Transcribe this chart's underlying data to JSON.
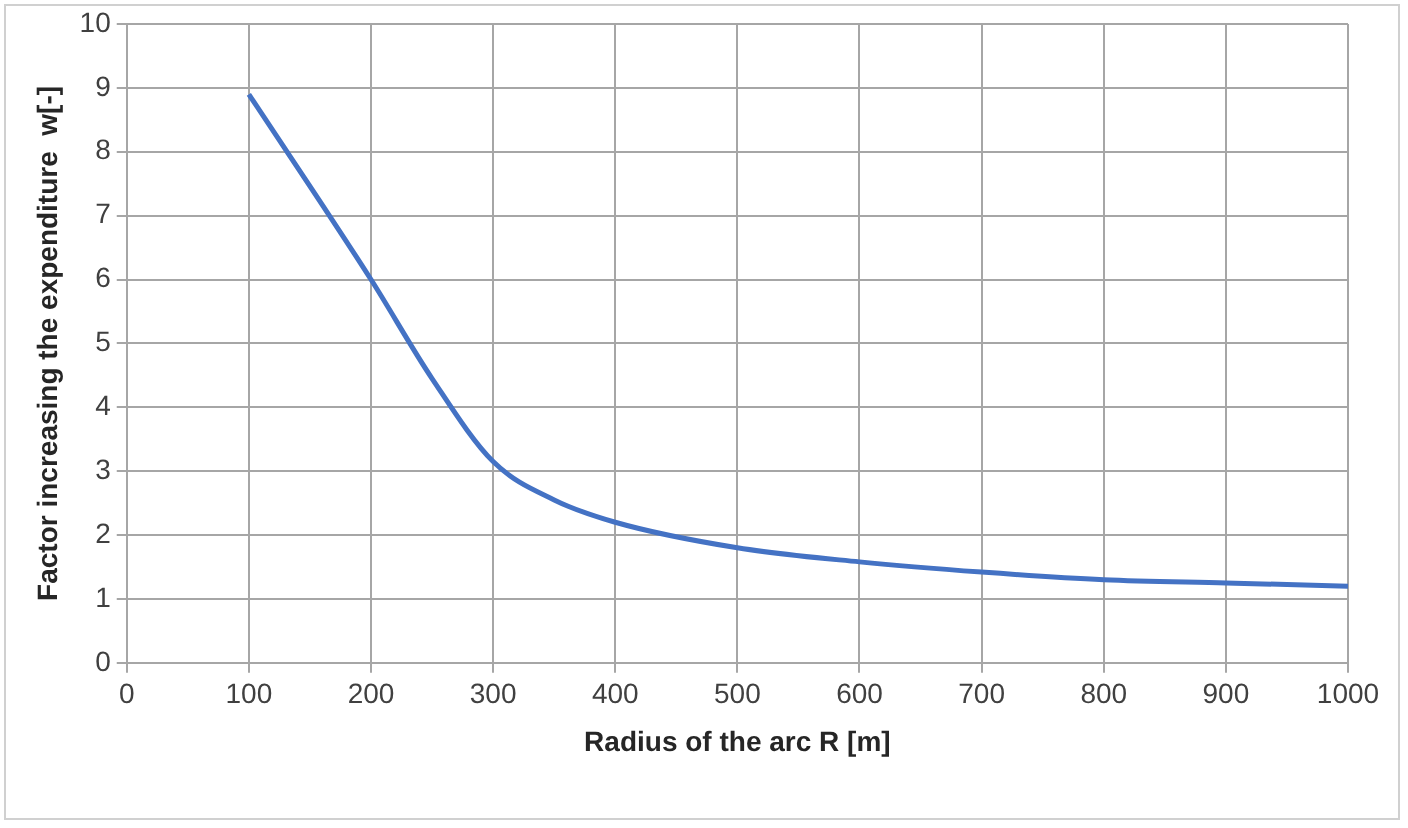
{
  "chart_data": {
    "type": "line",
    "xlabel": "Radius of the arc R [m]",
    "ylabel": "Factor increasing the expenditure  w[-]",
    "x": [
      100,
      200,
      250,
      300,
      350,
      400,
      500,
      600,
      700,
      800,
      900,
      1000
    ],
    "series": [
      {
        "color": "#4472c4",
        "values": [
          8.9,
          6.0,
          4.45,
          3.15,
          2.55,
          2.2,
          1.8,
          1.58,
          1.42,
          1.3,
          1.25,
          1.2
        ]
      }
    ],
    "xlim": [
      0,
      1000
    ],
    "xticks": [
      0,
      100,
      200,
      300,
      400,
      500,
      600,
      700,
      800,
      900,
      1000
    ],
    "ylim": [
      0,
      10
    ],
    "yticks": [
      0,
      1,
      2,
      3,
      4,
      5,
      6,
      7,
      8,
      9,
      10
    ],
    "grid": true,
    "legend": false,
    "marker": "none",
    "line_style": "solid"
  }
}
